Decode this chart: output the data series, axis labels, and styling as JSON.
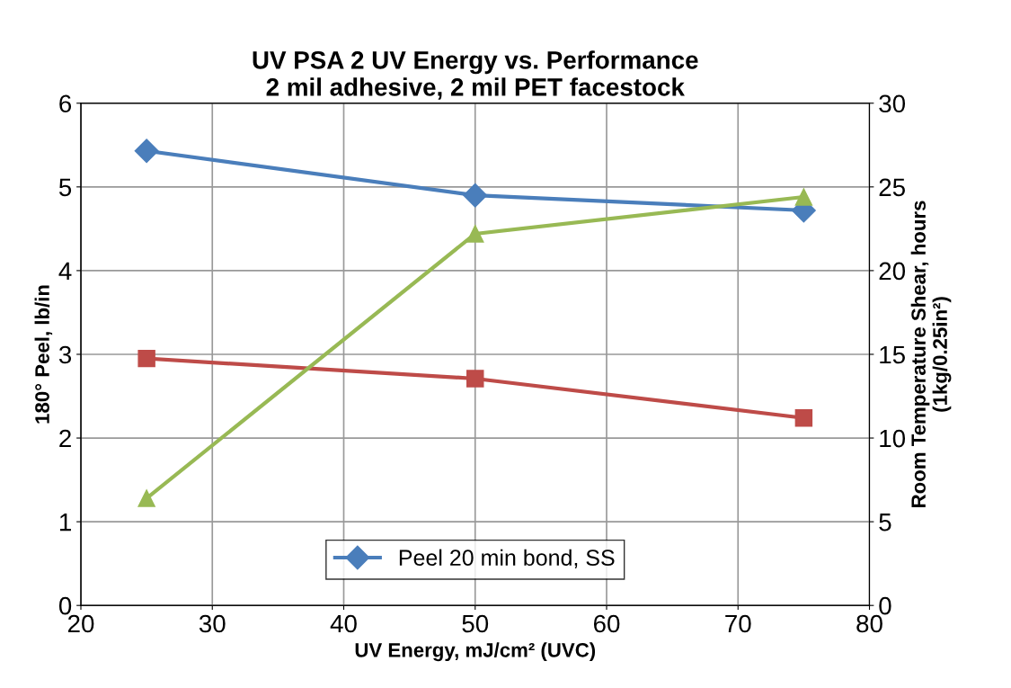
{
  "chart_data": {
    "type": "line",
    "title": "UV PSA 2 UV Energy vs. Performance\n2 mil adhesive, 2 mil PET facestock",
    "xlabel": "UV Energy, mJ/cm² (UVC)",
    "ylabel": "180° Peel, lb/in",
    "y2label": "Room Temperature Shear, hours\n(1kg/0.25in²)",
    "x": [
      25,
      50,
      75
    ],
    "series": [
      {
        "name": "Peel 20 min bond, SS",
        "color": "#4a7ebb",
        "marker": "diamond",
        "values": [
          5.43,
          4.9,
          4.72
        ]
      },
      {
        "color": "#be4b48",
        "marker": "square",
        "values": [
          2.95,
          2.71,
          2.24
        ]
      },
      {
        "color": "#98b954",
        "marker": "triangle",
        "axis": "y2",
        "values": [
          6.4,
          22.2,
          24.4
        ]
      }
    ],
    "xlim": [
      20,
      80
    ],
    "xticks": [
      20,
      30,
      40,
      50,
      60,
      70,
      80
    ],
    "ylim": [
      0,
      6
    ],
    "yticks": [
      0,
      1,
      2,
      3,
      4,
      5,
      6
    ],
    "y2lim": [
      0,
      30
    ],
    "y2ticks": [
      0,
      5,
      10,
      15,
      20,
      25,
      30
    ],
    "grid": true,
    "legend": "bottom"
  }
}
